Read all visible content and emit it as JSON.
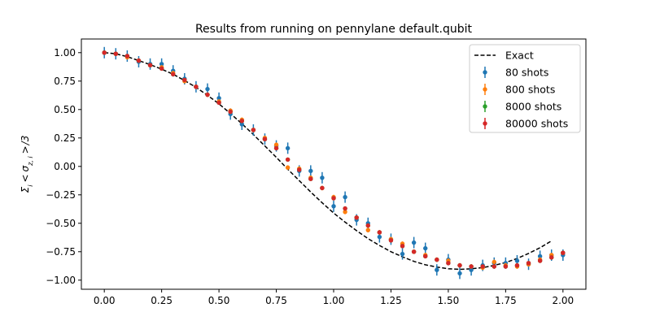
{
  "chart_data": {
    "type": "scatter",
    "title": "Results from running on pennylane default.qubit",
    "xlabel": "",
    "ylabel": "Σ_i < σ_{z,i} > /3",
    "ylabel_parts": {
      "sigma": "Σ",
      "sub_i": "i",
      "lt": "<",
      "sigma_small": "σ",
      "sub_zi": "z, i",
      "gt": ">",
      "tail": "/3"
    },
    "xlim": [
      -0.1,
      2.1
    ],
    "ylim": [
      -1.08,
      1.12
    ],
    "xticks": [
      0.0,
      0.25,
      0.5,
      0.75,
      1.0,
      1.25,
      1.5,
      1.75,
      2.0
    ],
    "xtick_labels": [
      "0.00",
      "0.25",
      "0.50",
      "0.75",
      "1.00",
      "1.25",
      "1.50",
      "1.75",
      "2.00"
    ],
    "yticks": [
      1.0,
      0.75,
      0.5,
      0.25,
      0.0,
      -0.25,
      -0.5,
      -0.75,
      -1.0
    ],
    "ytick_labels": [
      "1.00",
      "0.75",
      "0.50",
      "0.25",
      "0.00",
      "−0.25",
      "−0.50",
      "−0.75",
      "−1.00"
    ],
    "grid": false,
    "legend_position": "top-right",
    "exact": {
      "name": "Exact",
      "color": "#000000",
      "style": "dashed",
      "x": [
        0.0,
        0.05,
        0.1,
        0.15,
        0.2,
        0.25,
        0.3,
        0.35,
        0.4,
        0.45,
        0.5,
        0.55,
        0.6,
        0.65,
        0.7,
        0.75,
        0.8,
        0.85,
        0.9,
        0.95,
        1.0,
        1.05,
        1.1,
        1.15,
        1.2,
        1.25,
        1.3,
        1.35,
        1.4,
        1.45,
        1.5,
        1.55,
        1.6,
        1.65,
        1.7,
        1.75,
        1.8,
        1.85,
        1.9,
        1.95
      ],
      "y": [
        1.0,
        0.99,
        0.965,
        0.93,
        0.895,
        0.855,
        0.81,
        0.755,
        0.695,
        0.625,
        0.55,
        0.465,
        0.375,
        0.28,
        0.18,
        0.08,
        -0.025,
        -0.125,
        -0.225,
        -0.32,
        -0.41,
        -0.49,
        -0.565,
        -0.635,
        -0.695,
        -0.75,
        -0.795,
        -0.835,
        -0.865,
        -0.885,
        -0.9,
        -0.905,
        -0.9,
        -0.89,
        -0.87,
        -0.845,
        -0.81,
        -0.765,
        -0.715,
        -0.655
      ]
    },
    "series": [
      {
        "name": "80 shots",
        "color": "#1f77b4",
        "err": 0.05,
        "x": [
          0.0,
          0.05,
          0.1,
          0.15,
          0.2,
          0.25,
          0.3,
          0.35,
          0.4,
          0.45,
          0.5,
          0.55,
          0.6,
          0.65,
          0.7,
          0.75,
          0.8,
          0.85,
          0.9,
          0.95,
          1.0,
          1.05,
          1.1,
          1.15,
          1.2,
          1.25,
          1.3,
          1.35,
          1.4,
          1.45,
          1.5,
          1.55,
          1.6,
          1.65,
          1.7,
          1.75,
          1.8,
          1.85,
          1.9,
          1.95,
          2.0
        ],
        "y": [
          1.0,
          0.99,
          0.97,
          0.92,
          0.9,
          0.9,
          0.84,
          0.77,
          0.7,
          0.68,
          0.6,
          0.46,
          0.37,
          0.32,
          0.24,
          0.18,
          0.16,
          -0.04,
          -0.04,
          -0.1,
          -0.35,
          -0.27,
          -0.47,
          -0.5,
          -0.62,
          -0.64,
          -0.77,
          -0.67,
          -0.72,
          -0.91,
          -0.82,
          -0.94,
          -0.91,
          -0.87,
          -0.85,
          -0.85,
          -0.83,
          -0.86,
          -0.79,
          -0.78,
          -0.78
        ]
      },
      {
        "name": "800 shots",
        "color": "#ff7f0e",
        "err": 0.02,
        "x": [
          0.0,
          0.05,
          0.1,
          0.15,
          0.2,
          0.25,
          0.3,
          0.35,
          0.4,
          0.45,
          0.5,
          0.55,
          0.6,
          0.65,
          0.7,
          0.75,
          0.8,
          0.85,
          0.9,
          0.95,
          1.0,
          1.05,
          1.1,
          1.15,
          1.2,
          1.25,
          1.3,
          1.35,
          1.4,
          1.45,
          1.5,
          1.55,
          1.6,
          1.65,
          1.7,
          1.75,
          1.8,
          1.85,
          1.9,
          1.95,
          2.0
        ],
        "y": [
          1.0,
          0.99,
          0.96,
          0.93,
          0.89,
          0.87,
          0.82,
          0.75,
          0.7,
          0.63,
          0.57,
          0.49,
          0.41,
          0.32,
          0.25,
          0.19,
          -0.01,
          -0.02,
          -0.1,
          -0.19,
          -0.27,
          -0.4,
          -0.45,
          -0.56,
          -0.58,
          -0.64,
          -0.68,
          -0.75,
          -0.78,
          -0.82,
          -0.83,
          -0.87,
          -0.88,
          -0.89,
          -0.84,
          -0.87,
          -0.88,
          -0.86,
          -0.82,
          -0.78,
          -0.76
        ]
      },
      {
        "name": "8000 shots",
        "color": "#2ca02c",
        "err": 0.01,
        "x": [
          0.0,
          0.05,
          0.1,
          0.15,
          0.2,
          0.25,
          0.3,
          0.35,
          0.4,
          0.45,
          0.5,
          0.55,
          0.6,
          0.65,
          0.7,
          0.75,
          0.8,
          0.85,
          0.9,
          0.95,
          1.0,
          1.05,
          1.1,
          1.15,
          1.2,
          1.25,
          1.3,
          1.35,
          1.4,
          1.45,
          1.5,
          1.55,
          1.6,
          1.65,
          1.7,
          1.75,
          1.8,
          1.85,
          1.9,
          1.95,
          2.0
        ],
        "y": [
          1.0,
          0.99,
          0.97,
          0.93,
          0.89,
          0.86,
          0.81,
          0.76,
          0.7,
          0.63,
          0.56,
          0.48,
          0.4,
          0.32,
          0.24,
          0.16,
          0.06,
          -0.03,
          -0.11,
          -0.19,
          -0.28,
          -0.37,
          -0.45,
          -0.52,
          -0.58,
          -0.65,
          -0.7,
          -0.75,
          -0.79,
          -0.82,
          -0.85,
          -0.87,
          -0.88,
          -0.88,
          -0.88,
          -0.88,
          -0.87,
          -0.85,
          -0.83,
          -0.8,
          -0.76
        ]
      },
      {
        "name": "80000 shots",
        "color": "#d62728",
        "err": 0.005,
        "x": [
          0.0,
          0.05,
          0.1,
          0.15,
          0.2,
          0.25,
          0.3,
          0.35,
          0.4,
          0.45,
          0.5,
          0.55,
          0.6,
          0.65,
          0.7,
          0.75,
          0.8,
          0.85,
          0.9,
          0.95,
          1.0,
          1.05,
          1.1,
          1.15,
          1.2,
          1.25,
          1.3,
          1.35,
          1.4,
          1.45,
          1.5,
          1.55,
          1.6,
          1.65,
          1.7,
          1.75,
          1.8,
          1.85,
          1.9,
          1.95,
          2.0
        ],
        "y": [
          1.0,
          0.99,
          0.97,
          0.93,
          0.89,
          0.86,
          0.81,
          0.76,
          0.7,
          0.63,
          0.56,
          0.48,
          0.4,
          0.32,
          0.24,
          0.16,
          0.06,
          -0.03,
          -0.11,
          -0.19,
          -0.28,
          -0.37,
          -0.45,
          -0.52,
          -0.58,
          -0.65,
          -0.7,
          -0.75,
          -0.79,
          -0.82,
          -0.85,
          -0.87,
          -0.88,
          -0.88,
          -0.88,
          -0.88,
          -0.87,
          -0.85,
          -0.83,
          -0.8,
          -0.76
        ]
      }
    ]
  }
}
